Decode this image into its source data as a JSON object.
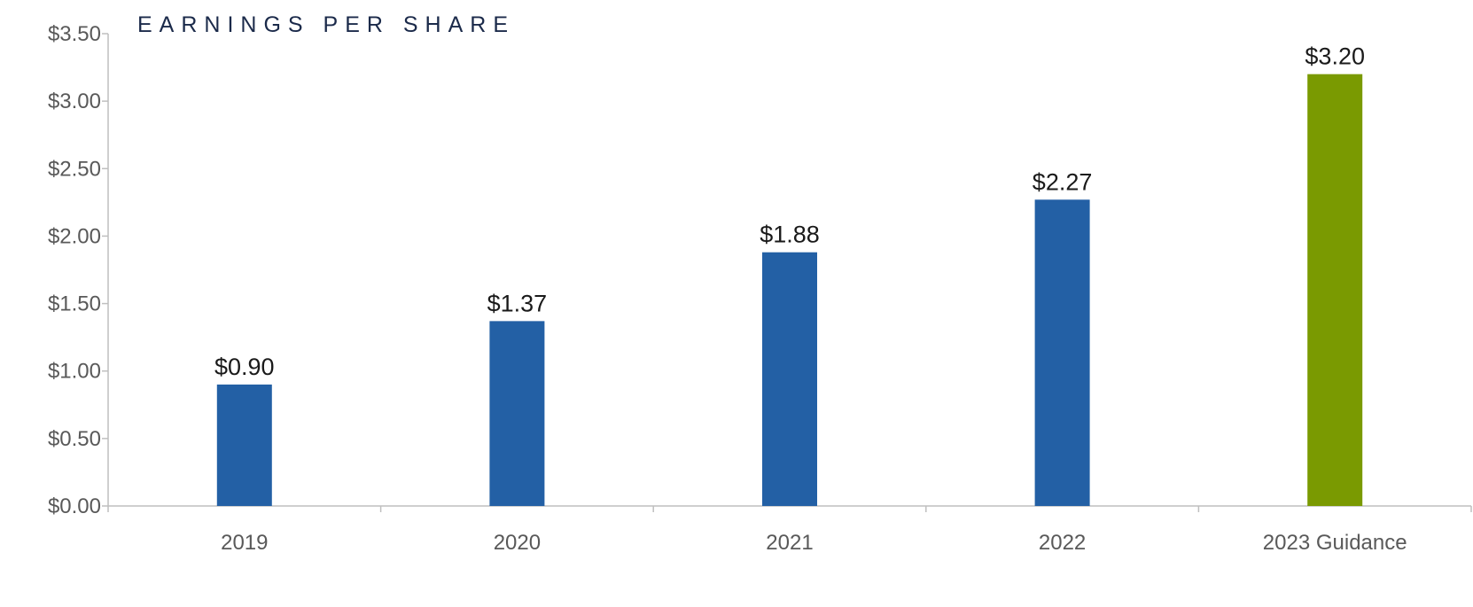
{
  "chart_data": {
    "type": "bar",
    "title": "EARNINGS PER SHARE",
    "categories": [
      "2019",
      "2020",
      "2021",
      "2022",
      "2023 Guidance"
    ],
    "values": [
      0.9,
      1.37,
      1.88,
      2.27,
      3.2
    ],
    "data_labels": [
      "$0.90",
      "$1.37",
      "$1.88",
      "$2.27",
      "$3.20"
    ],
    "bar_colors": [
      "#2360a5",
      "#2360a5",
      "#2360a5",
      "#2360a5",
      "#7a9a01"
    ],
    "ylim": [
      0,
      3.5
    ],
    "y_ticks": [
      0,
      0.5,
      1.0,
      1.5,
      2.0,
      2.5,
      3.0,
      3.5
    ],
    "y_tick_labels": [
      "$0.00",
      "$0.50",
      "$1.00",
      "$1.50",
      "$2.00",
      "$2.50",
      "$3.00",
      "$3.50"
    ],
    "grid": false,
    "legend": "none"
  }
}
